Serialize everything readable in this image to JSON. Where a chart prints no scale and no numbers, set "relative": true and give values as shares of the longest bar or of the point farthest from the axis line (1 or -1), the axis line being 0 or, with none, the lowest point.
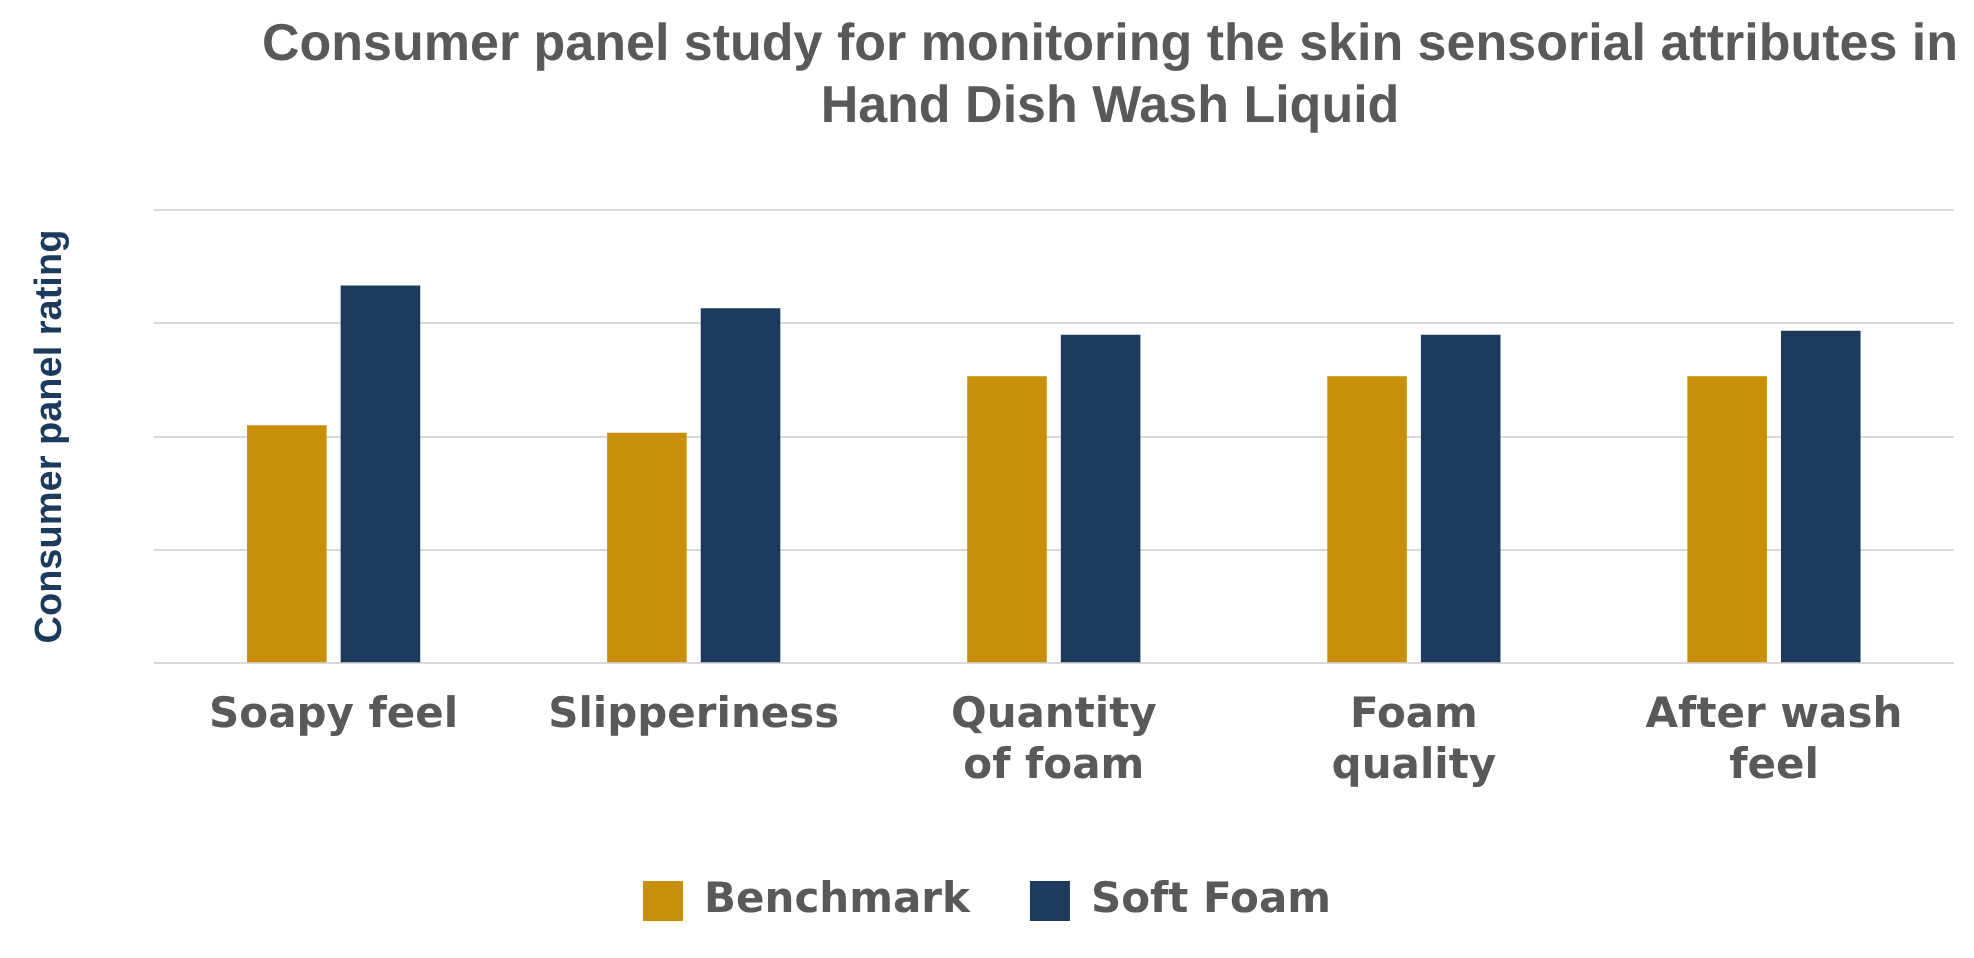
{
  "chart_data": {
    "type": "bar",
    "title": "Consumer panel study for monitoring the skin sensorial attributes in Hand Dish Wash Liquid",
    "ylabel": "Consumer panel rating",
    "categories": [
      "Soapy feel",
      "Slipperiness",
      "Quantity of foam",
      "Foam quality",
      "After wash feel"
    ],
    "relative": true,
    "grid": "y",
    "legend": "bottom",
    "series": [
      {
        "name": "Benchmark",
        "color": "#c8900a",
        "values": [
          0.63,
          0.61,
          0.76,
          0.76,
          0.76
        ]
      },
      {
        "name": "Soft Foam",
        "color": "#1b3a5c",
        "values": [
          1,
          0.94,
          0.87,
          0.87,
          0.88
        ]
      }
    ]
  }
}
